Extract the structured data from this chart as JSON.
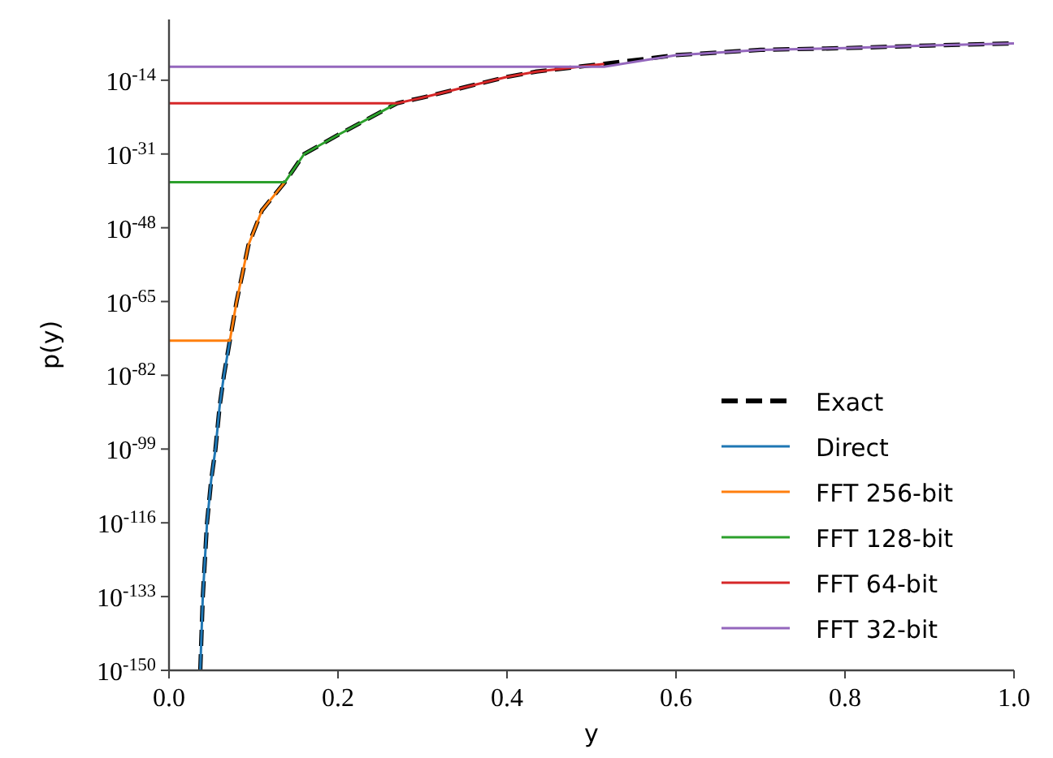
{
  "chart_data": {
    "type": "line",
    "xlabel": "y",
    "ylabel": "p(y)",
    "log": "y",
    "xlim": [
      0,
      1
    ],
    "xticks": [
      {
        "value": 0,
        "label": "0.0"
      },
      {
        "value": 0.2,
        "label": "0.2"
      },
      {
        "value": 0.4,
        "label": "0.4"
      },
      {
        "value": 0.6,
        "label": "0.6"
      },
      {
        "value": 0.8,
        "label": "0.8"
      },
      {
        "value": 1,
        "label": "1.0"
      }
    ],
    "ylim": [
      1e-150,
      1
    ],
    "yticks": [
      {
        "value": 1e-14,
        "label": "10$^{-14}$"
      },
      {
        "value": 1e-31,
        "label": "10$^{-31}$"
      },
      {
        "value": 1e-48,
        "label": "10$^{-48}$"
      },
      {
        "value": 1e-65,
        "label": "10$^{-65}$"
      },
      {
        "value": 1e-82,
        "label": "10$^{-82}$"
      },
      {
        "value": 1e-99,
        "label": "10$^{-99}$"
      },
      {
        "value": 1e-116,
        "label": "10$^{-116}$"
      },
      {
        "value": 1e-133,
        "label": "10$^{-133}$"
      },
      {
        "value": 1e-150,
        "label": "10$^{-150}$"
      }
    ],
    "grid": false,
    "legend": "bottom right",
    "marker": "none",
    "series": [
      {
        "name": "Exact",
        "color": "#000000",
        "line_style": "dashed",
        "x": [
          0.037,
          0.04,
          0.045,
          0.05,
          0.055,
          0.06,
          0.065,
          0.072,
          0.08,
          0.094,
          0.11,
          0.137,
          0.16,
          0.2,
          0.27,
          0.3,
          0.4,
          0.435,
          0.515,
          0.6,
          0.7,
          0.8,
          0.9,
          1.0
        ],
        "values": [
          1e-150,
          1e-133,
          1e-116,
          1e-106,
          1e-99,
          1e-89,
          1e-82,
          1e-74,
          1e-65,
          1e-52,
          1e-44,
          3e-38,
          1e-31,
          2.5e-27,
          5e-20,
          1e-18,
          6e-14,
          1e-12,
          6e-11,
          6e-09,
          1e-07,
          2.5e-07,
          1e-06,
          3e-06
        ]
      },
      {
        "name": "Direct",
        "color": "#1f77b4",
        "line_style": "solid",
        "x": [
          0.037,
          0.04,
          0.045,
          0.05,
          0.055,
          0.06,
          0.065,
          0.072
        ],
        "values": [
          1e-150,
          1e-133,
          1e-116,
          1e-106,
          1e-99,
          1e-89,
          1e-82,
          1e-74
        ]
      },
      {
        "name": "FFT 256-bit",
        "color": "#ff7f0e",
        "line_style": "solid",
        "x": [
          0,
          0.072,
          0.08,
          0.094,
          0.11,
          0.137
        ],
        "values": [
          1e-74,
          1e-74,
          1e-65,
          1e-52,
          1e-44,
          3e-38
        ]
      },
      {
        "name": "FFT 128-bit",
        "color": "#2ca02c",
        "line_style": "solid",
        "x": [
          0,
          0.137,
          0.16,
          0.2,
          0.27
        ],
        "values": [
          3e-38,
          3e-38,
          1e-31,
          2.5e-27,
          5e-20
        ]
      },
      {
        "name": "FFT 64-bit",
        "color": "#d62728",
        "line_style": "solid",
        "x": [
          0,
          0.27,
          0.3,
          0.4,
          0.435,
          0.515
        ],
        "values": [
          5e-20,
          5e-20,
          1e-18,
          6e-14,
          1e-12,
          6e-11
        ]
      },
      {
        "name": "FFT 32-bit",
        "color": "#9467bd",
        "line_style": "solid",
        "x": [
          0,
          0.515,
          0.6,
          0.7,
          0.8,
          0.9,
          1.0
        ],
        "values": [
          1.3e-11,
          1.3e-11,
          6e-09,
          1e-07,
          2.5e-07,
          1e-06,
          3e-06
        ]
      }
    ]
  }
}
